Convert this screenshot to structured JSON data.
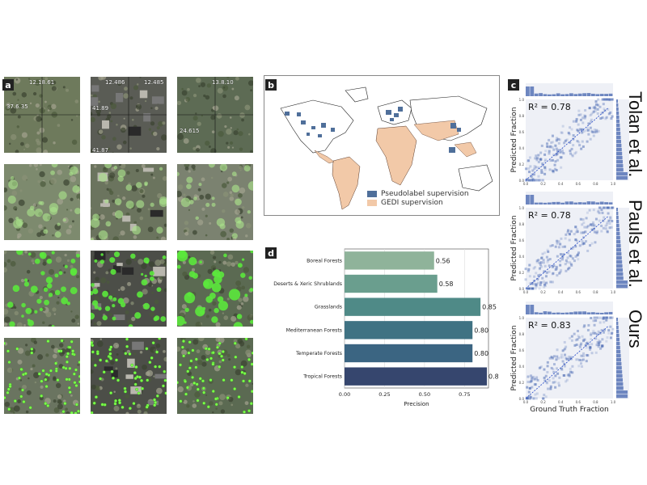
{
  "panels": {
    "a": "a",
    "b": "b",
    "c": "c",
    "d": "d"
  },
  "coords": {
    "t1_top": "12.18.61",
    "t1_left": "37.6.35",
    "t2_top1": "12.486",
    "t2_top2": "12.485",
    "t2_left1": "41.89",
    "t2_left2": "41.87",
    "t3_top": "13.8.10",
    "t3_left": "24.615"
  },
  "map": {
    "legend": [
      {
        "label": "Pseudolabel supervision",
        "color": "#4f6f9a"
      },
      {
        "label": "GEDI supervision",
        "color": "#f2c9a8"
      }
    ]
  },
  "chart_data": [
    {
      "type": "bar",
      "orientation": "horizontal",
      "categories": [
        "Boreal Forests",
        "Deserts & Xeric Shrublands",
        "Grasslands",
        "Mediterranean Forests",
        "Temperate Forests",
        "Tropical Forests"
      ],
      "values": [
        0.56,
        0.58,
        0.85,
        0.8,
        0.8,
        0.89
      ],
      "value_labels": [
        "0.56",
        "0.58",
        "0.85",
        "0.80",
        "0.80",
        "0.89"
      ],
      "colors": [
        "#8fb39a",
        "#6a9e8e",
        "#4f8a87",
        "#3f7283",
        "#3b6582",
        "#36466e"
      ],
      "xlabel": "Precision",
      "xticks": [
        "0.00",
        "0.25",
        "0.50",
        "0.75"
      ],
      "xlim": [
        0,
        0.9
      ],
      "grid": true
    },
    {
      "type": "scatter",
      "name": "Tolan et al.",
      "r2": "R² = 0.78",
      "ylabel": "Predicted Fraction",
      "xticks": [
        "0.0",
        "0.2",
        "0.4",
        "0.6",
        "0.8",
        "1.0"
      ],
      "yticks": [
        "0.0",
        "0.2",
        "0.4",
        "0.6",
        "0.8",
        "1.0"
      ],
      "xlim": [
        0,
        1
      ],
      "ylim": [
        0,
        1
      ]
    },
    {
      "type": "scatter",
      "name": "Pauls et al.",
      "r2": "R² = 0.78",
      "ylabel": "Predicted Fraction",
      "xticks": [
        "0.0",
        "0.2",
        "0.4",
        "0.6",
        "0.8",
        "1.0"
      ],
      "yticks": [
        "0.0",
        "0.2",
        "0.4",
        "0.6",
        "0.8",
        "1.0"
      ],
      "xlim": [
        0,
        1
      ],
      "ylim": [
        0,
        1
      ]
    },
    {
      "type": "scatter",
      "name": "Ours",
      "r2": "R² = 0.83",
      "xlabel": "Ground Truth Fraction",
      "ylabel": "Predicted Fraction",
      "xticks": [
        "0.0",
        "0.2",
        "0.4",
        "0.6",
        "0.8",
        "1.0"
      ],
      "yticks": [
        "0.0",
        "0.2",
        "0.4",
        "0.6",
        "0.8",
        "1.0"
      ],
      "xlim": [
        0,
        1
      ],
      "ylim": [
        0,
        1
      ]
    }
  ]
}
